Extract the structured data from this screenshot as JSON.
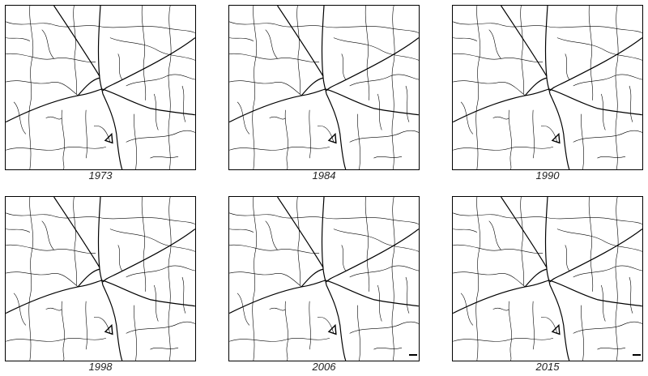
{
  "maps": [
    {
      "label": "1973"
    },
    {
      "label": "1984"
    },
    {
      "label": "1990"
    },
    {
      "label": "1998"
    },
    {
      "label": "2006"
    },
    {
      "label": "2015"
    }
  ],
  "colors": {
    "roads": "#000000",
    "background": "#ffffff"
  }
}
